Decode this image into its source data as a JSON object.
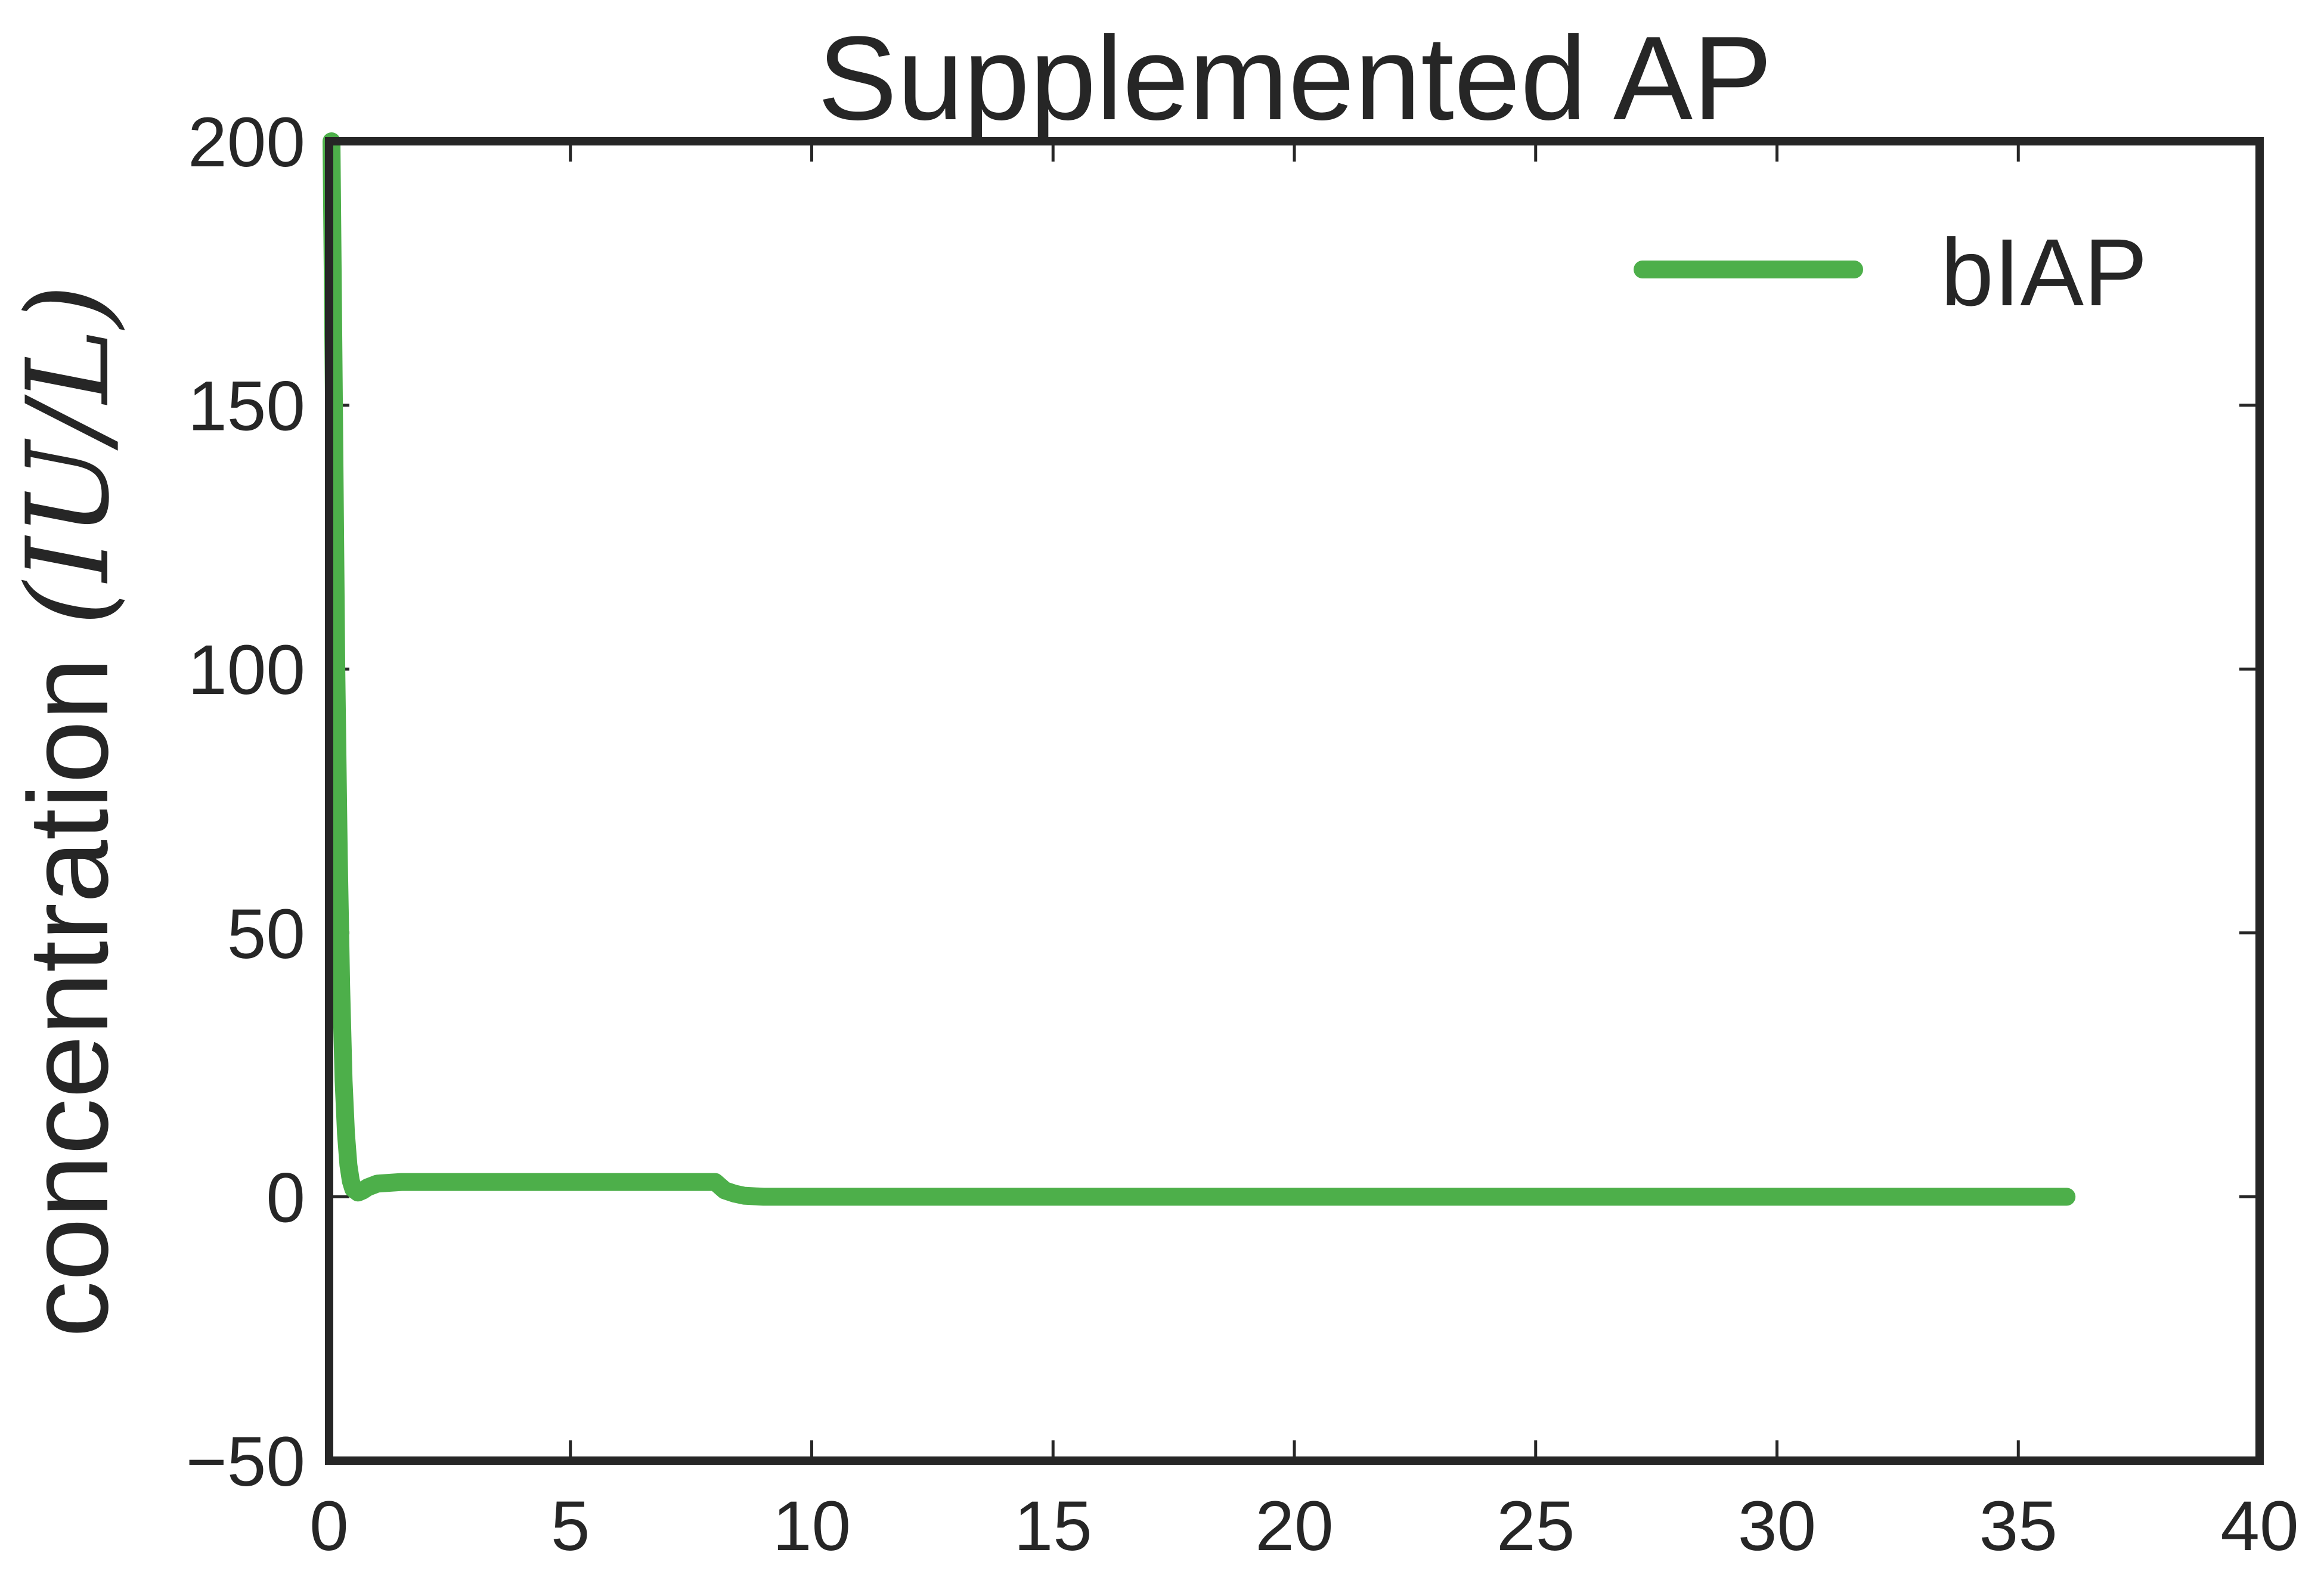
{
  "chart_data": {
    "type": "line",
    "title": "Supplemented AP",
    "xlabel": "",
    "ylabel": "concentration (IU/L)",
    "ylabel_plain": "concentration ",
    "ylabel_math": "(IU/L)",
    "xlim": [
      0,
      40
    ],
    "ylim": [
      -50,
      200
    ],
    "x_ticks": [
      0,
      5,
      10,
      15,
      20,
      25,
      30,
      35,
      40
    ],
    "x_tick_labels": [
      "0",
      "5",
      "10",
      "15",
      "20",
      "25",
      "30",
      "35",
      "40"
    ],
    "y_ticks": [
      -50,
      0,
      50,
      100,
      150,
      200
    ],
    "y_tick_labels": [
      "−50",
      "0",
      "50",
      "100",
      "150",
      "200"
    ],
    "grid": false,
    "legend_position": "top-right",
    "series": [
      {
        "name": "bIAP",
        "color": "#4daf4a",
        "x": [
          0.05,
          0.1,
          0.15,
          0.2,
          0.25,
          0.3,
          0.35,
          0.4,
          0.45,
          0.5,
          0.6,
          0.7,
          0.8,
          1.0,
          1.5,
          2.0,
          4.0,
          6.0,
          7.5,
          8.0,
          8.2,
          8.4,
          8.6,
          9.0,
          10,
          15,
          20,
          25,
          30,
          35,
          36
        ],
        "y": [
          200,
          150,
          100,
          65,
          40,
          22,
          12,
          6,
          3,
          1.5,
          0.8,
          1.2,
          1.8,
          2.5,
          2.8,
          2.8,
          2.8,
          2.8,
          2.8,
          2.8,
          1.2,
          0.6,
          0.2,
          0,
          0,
          0,
          0,
          0,
          0,
          0,
          0
        ]
      }
    ]
  }
}
